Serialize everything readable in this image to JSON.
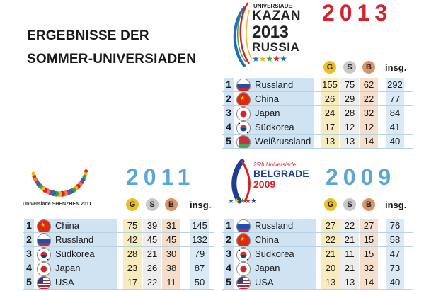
{
  "title": {
    "line1": "ERGEBNISSE DER",
    "line2": "SOMMER-UNIVERSIADEN"
  },
  "medal_labels": {
    "gold": "G",
    "silver": "S",
    "bronze": "B",
    "total": "insg."
  },
  "colors": {
    "gold": "#e9bf2a",
    "silver": "#c9c9c9",
    "bronze": "#d99566",
    "row_tint": "#d9eaf6",
    "year_2013": "#d3242c",
    "year_blue": "#5aa6d6"
  },
  "logos": {
    "kazan": {
      "line1": "UNIVERSIADE",
      "line2": "KAZAN",
      "line3": "2013",
      "line4": "RUSSIA"
    },
    "shenzhen": {
      "caption": "Universiade SHENZHEN 2011"
    },
    "belgrade": {
      "line1": "25th Universiade",
      "line2": "BELGRADE",
      "line3": "2009"
    }
  },
  "chart_data": [
    {
      "type": "table",
      "year": "2013",
      "columns": [
        "G",
        "S",
        "B",
        "insg."
      ],
      "rows": [
        {
          "rank": "1",
          "country": "Russland",
          "flag": "russia",
          "values": [
            "155",
            "75",
            "62",
            "292"
          ]
        },
        {
          "rank": "2",
          "country": "China",
          "flag": "china",
          "values": [
            "26",
            "29",
            "22",
            "77"
          ]
        },
        {
          "rank": "3",
          "country": "Japan",
          "flag": "japan",
          "values": [
            "24",
            "28",
            "32",
            "84"
          ]
        },
        {
          "rank": "4",
          "country": "Südkorea",
          "flag": "korea",
          "values": [
            "17",
            "12",
            "12",
            "41"
          ]
        },
        {
          "rank": "5",
          "country": "Weißrussland",
          "flag": "belarus",
          "values": [
            "13",
            "13",
            "14",
            "40"
          ]
        }
      ]
    },
    {
      "type": "table",
      "year": "2011",
      "columns": [
        "G",
        "S",
        "B",
        "insg."
      ],
      "rows": [
        {
          "rank": "1",
          "country": "China",
          "flag": "china",
          "values": [
            "75",
            "39",
            "31",
            "145"
          ]
        },
        {
          "rank": "2",
          "country": "Russland",
          "flag": "russia",
          "values": [
            "42",
            "45",
            "45",
            "132"
          ]
        },
        {
          "rank": "3",
          "country": "Südkorea",
          "flag": "korea",
          "values": [
            "28",
            "21",
            "30",
            "79"
          ]
        },
        {
          "rank": "4",
          "country": "Japan",
          "flag": "japan",
          "values": [
            "23",
            "26",
            "38",
            "87"
          ]
        },
        {
          "rank": "5",
          "country": "USA",
          "flag": "usa",
          "values": [
            "17",
            "22",
            "11",
            "50"
          ]
        }
      ]
    },
    {
      "type": "table",
      "year": "2009",
      "columns": [
        "G",
        "S",
        "B",
        "insg."
      ],
      "rows": [
        {
          "rank": "1",
          "country": "Russland",
          "flag": "russia",
          "values": [
            "27",
            "22",
            "27",
            "76"
          ]
        },
        {
          "rank": "2",
          "country": "China",
          "flag": "china",
          "values": [
            "22",
            "21",
            "15",
            "58"
          ]
        },
        {
          "rank": "3",
          "country": "Südkorea",
          "flag": "korea",
          "values": [
            "21",
            "11",
            "15",
            "47"
          ]
        },
        {
          "rank": "4",
          "country": "Japan",
          "flag": "japan",
          "values": [
            "20",
            "21",
            "32",
            "73"
          ]
        },
        {
          "rank": "5",
          "country": "USA",
          "flag": "usa",
          "values": [
            "13",
            "13",
            "14",
            "40"
          ]
        }
      ]
    }
  ]
}
